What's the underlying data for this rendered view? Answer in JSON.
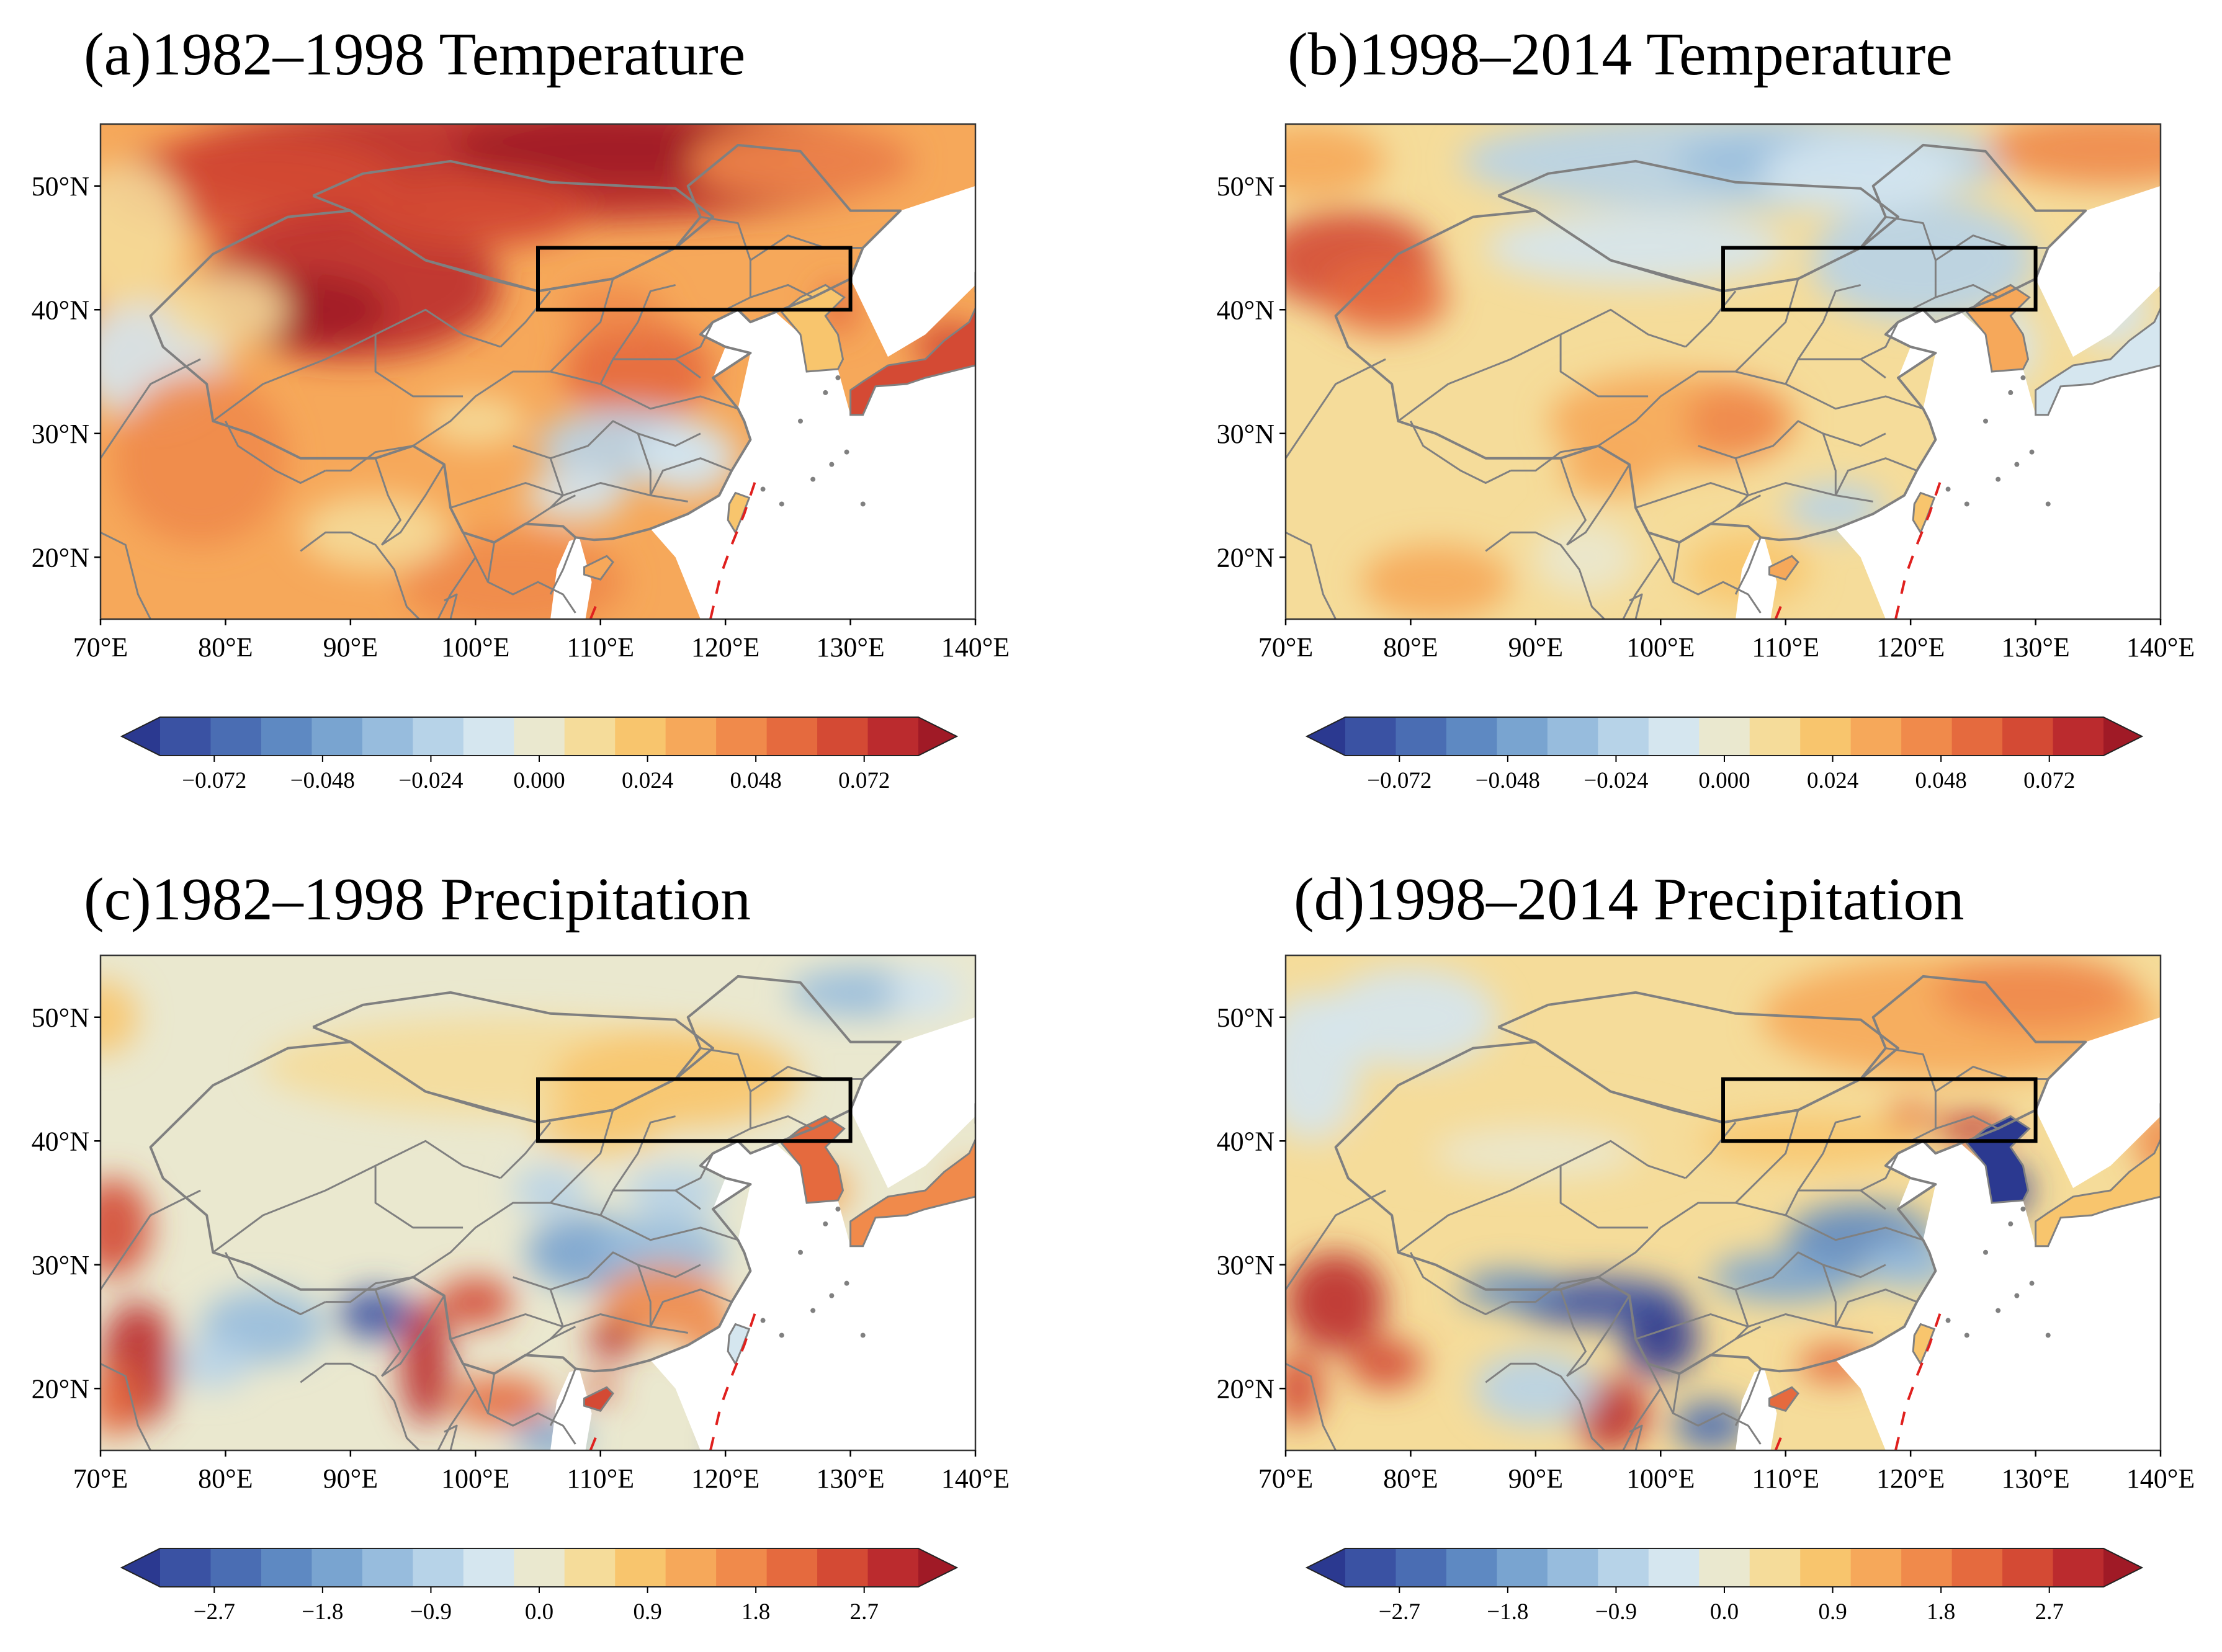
{
  "figure": {
    "description": "Four-panel map figure of East Asia"
  },
  "axes": {
    "lon_ticks": [
      "70°E",
      "80°E",
      "90°E",
      "100°E",
      "110°E",
      "120°E",
      "130°E",
      "140°E"
    ],
    "lat_ticks": [
      "50°N",
      "40°N",
      "30°N",
      "20°N"
    ],
    "lon_range": [
      70,
      140
    ],
    "lat_range": [
      15,
      55
    ]
  },
  "region_box": {
    "lon": [
      105,
      130
    ],
    "lat": [
      40,
      45
    ]
  },
  "colors": {
    "scale": [
      "#2b3990",
      "#3a52a3",
      "#4a6db3",
      "#5e89c2",
      "#79a4d0",
      "#97bcdd",
      "#b7d3e8",
      "#d5e6ef",
      "#eae8cf",
      "#f5dc9a",
      "#f8c56d",
      "#f6a85a",
      "#f08a4b",
      "#e56a3e",
      "#d44a34",
      "#bb2b2e",
      "#a01a26"
    ],
    "border": "#808080",
    "box": "#000000",
    "dashed_line": "#e0201e"
  },
  "panels": [
    {
      "id": "a",
      "title": "(a)1982–1998 Temperature",
      "variable": "temperature",
      "colorbar_ticks": [
        "−0.072",
        "−0.048",
        "−0.024",
        "0.000",
        "0.024",
        "0.048",
        "0.072"
      ],
      "colorbar_values": [
        -0.072,
        -0.048,
        -0.024,
        0.0,
        0.024,
        0.048,
        0.072
      ]
    },
    {
      "id": "b",
      "title": "(b)1998–2014 Temperature",
      "variable": "temperature",
      "colorbar_ticks": [
        "−0.072",
        "−0.048",
        "−0.024",
        "0.000",
        "0.024",
        "0.048",
        "0.072"
      ],
      "colorbar_values": [
        -0.072,
        -0.048,
        -0.024,
        0.0,
        0.024,
        0.048,
        0.072
      ]
    },
    {
      "id": "c",
      "title": "(c)1982–1998 Precipitation",
      "variable": "precipitation",
      "colorbar_ticks": [
        "−2.7",
        "−1.8",
        "−0.9",
        "0.0",
        "0.9",
        "1.8",
        "2.7"
      ],
      "colorbar_values": [
        -2.7,
        -1.8,
        -0.9,
        0.0,
        0.9,
        1.8,
        2.7
      ]
    },
    {
      "id": "d",
      "title": "(d)1998–2014 Precipitation",
      "variable": "precipitation",
      "colorbar_ticks": [
        "−2.7",
        "−1.8",
        "−0.9",
        "0.0",
        "0.9",
        "1.8",
        "2.7"
      ],
      "colorbar_values": [
        -2.7,
        -1.8,
        -0.9,
        0.0,
        0.9,
        1.8,
        2.7
      ]
    }
  ]
}
